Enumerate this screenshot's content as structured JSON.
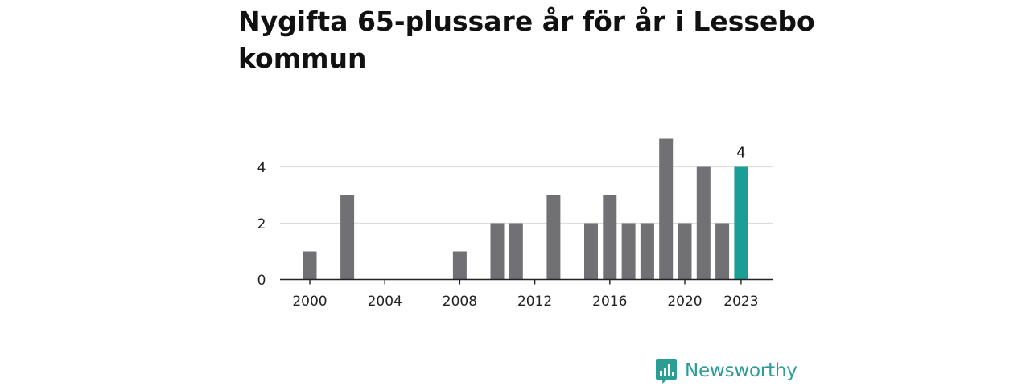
{
  "title": "Nygifta 65-plussare år för år i Lessebo kommun",
  "brand": {
    "name": "Newsworthy",
    "icon": "newsworthy-logo-icon",
    "color": "#2a9d95"
  },
  "chart_data": {
    "type": "bar",
    "title": "Nygifta 65-plussare år för år i Lessebo kommun",
    "xlabel": "",
    "ylabel": "",
    "x": [
      2000,
      2001,
      2002,
      2003,
      2004,
      2005,
      2006,
      2007,
      2008,
      2009,
      2010,
      2011,
      2012,
      2013,
      2014,
      2015,
      2016,
      2017,
      2018,
      2019,
      2020,
      2021,
      2022,
      2023
    ],
    "values": [
      1,
      0,
      3,
      0,
      0,
      0,
      0,
      0,
      1,
      0,
      2,
      2,
      0,
      3,
      0,
      2,
      3,
      2,
      2,
      5,
      2,
      4,
      2,
      4
    ],
    "ylim": [
      0,
      5
    ],
    "yticks": [
      0,
      2,
      4
    ],
    "xticks": [
      2000,
      2004,
      2008,
      2012,
      2016,
      2020,
      2023
    ],
    "grid": true,
    "highlight": {
      "x": 2023,
      "label": "4"
    },
    "colors": {
      "bar": "#707075",
      "highlight": "#1a9e96",
      "grid": "#dddddd",
      "axis": "#222222"
    }
  }
}
